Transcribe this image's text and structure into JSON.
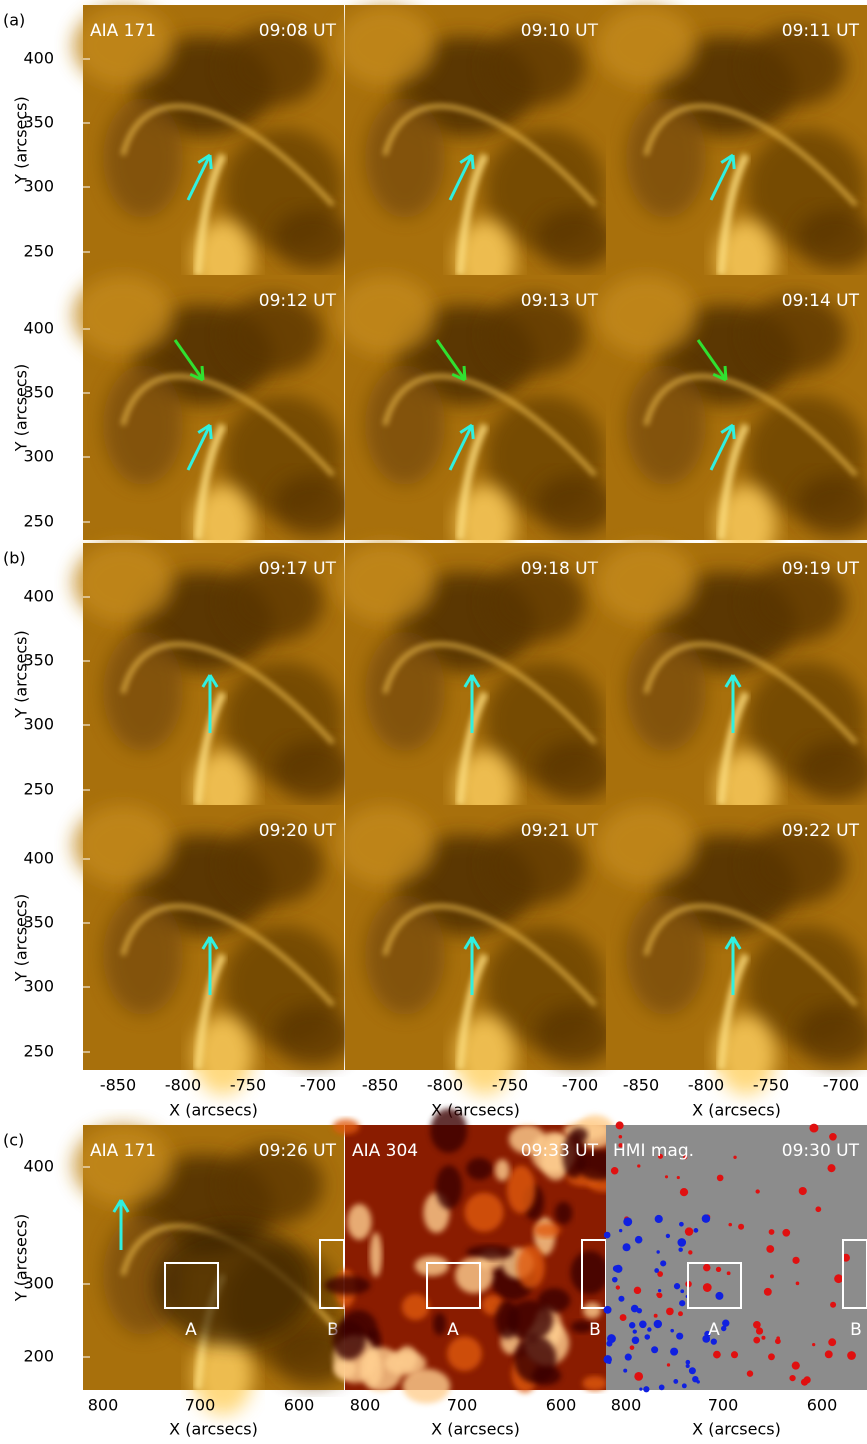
{
  "figure": {
    "y_label": "Y (arcsecs)",
    "x_label": "X (arcsecs)",
    "y_ticks_ab": [
      "400",
      "350",
      "300",
      "250"
    ],
    "x_ticks_ab": [
      "-850",
      "-800",
      "-750",
      "-700"
    ],
    "groups": [
      {
        "label": "(a)",
        "instrument": "AIA 171",
        "rows": [
          [
            "09:08 UT",
            "09:10 UT",
            "09:11 UT"
          ],
          [
            "09:12 UT",
            "09:13 UT",
            "09:14 UT"
          ]
        ]
      },
      {
        "label": "(b)",
        "rows": [
          [
            "09:17 UT",
            "09:18 UT",
            "09:19 UT"
          ],
          [
            "09:20 UT",
            "09:21 UT",
            "09:22 UT"
          ]
        ]
      },
      {
        "label": "(c)",
        "panels": [
          {
            "instrument": "AIA 171",
            "time": "09:26 UT"
          },
          {
            "instrument": "AIA 304",
            "time": "09:33 UT"
          },
          {
            "instrument": "HMI mag.",
            "time": "09:30 UT"
          }
        ],
        "boxes": [
          "A",
          "B"
        ],
        "y_ticks": [
          "400",
          "300",
          "200"
        ],
        "x_ticks": [
          "800",
          "700",
          "600"
        ]
      }
    ]
  }
}
